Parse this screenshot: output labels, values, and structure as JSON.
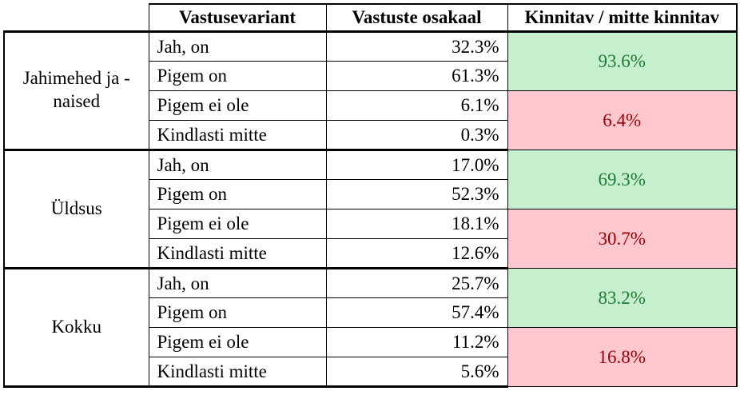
{
  "header": {
    "col_variant": "Vastusevariant",
    "col_share": "Vastuste osakaal",
    "col_summary": "Kinnitav / mitte kinnitav"
  },
  "groups": [
    {
      "label": "Jahimehed ja - naised",
      "rows": [
        {
          "variant": "Jah, on",
          "share": "32.3%"
        },
        {
          "variant": "Pigem on",
          "share": "61.3%"
        },
        {
          "variant": "Pigem ei ole",
          "share": "6.1%"
        },
        {
          "variant": "Kindlasti mitte",
          "share": "0.3%"
        }
      ],
      "positive": "93.6%",
      "negative": "6.4%"
    },
    {
      "label": "Üldsus",
      "rows": [
        {
          "variant": "Jah, on",
          "share": "17.0%"
        },
        {
          "variant": "Pigem on",
          "share": "52.3%"
        },
        {
          "variant": "Pigem ei ole",
          "share": "18.1%"
        },
        {
          "variant": "Kindlasti mitte",
          "share": "12.6%"
        }
      ],
      "positive": "69.3%",
      "negative": "30.7%"
    },
    {
      "label": "Kokku",
      "rows": [
        {
          "variant": "Jah, on",
          "share": "25.7%"
        },
        {
          "variant": "Pigem on",
          "share": "57.4%"
        },
        {
          "variant": "Pigem ei ole",
          "share": "11.2%"
        },
        {
          "variant": "Kindlasti mitte",
          "share": "5.6%"
        }
      ],
      "positive": "83.2%",
      "negative": "16.8%"
    }
  ],
  "colors": {
    "positive_fill": "#c6efce",
    "positive_text": "#1e7b34",
    "negative_fill": "#ffc7ce",
    "negative_text": "#9c0006"
  }
}
